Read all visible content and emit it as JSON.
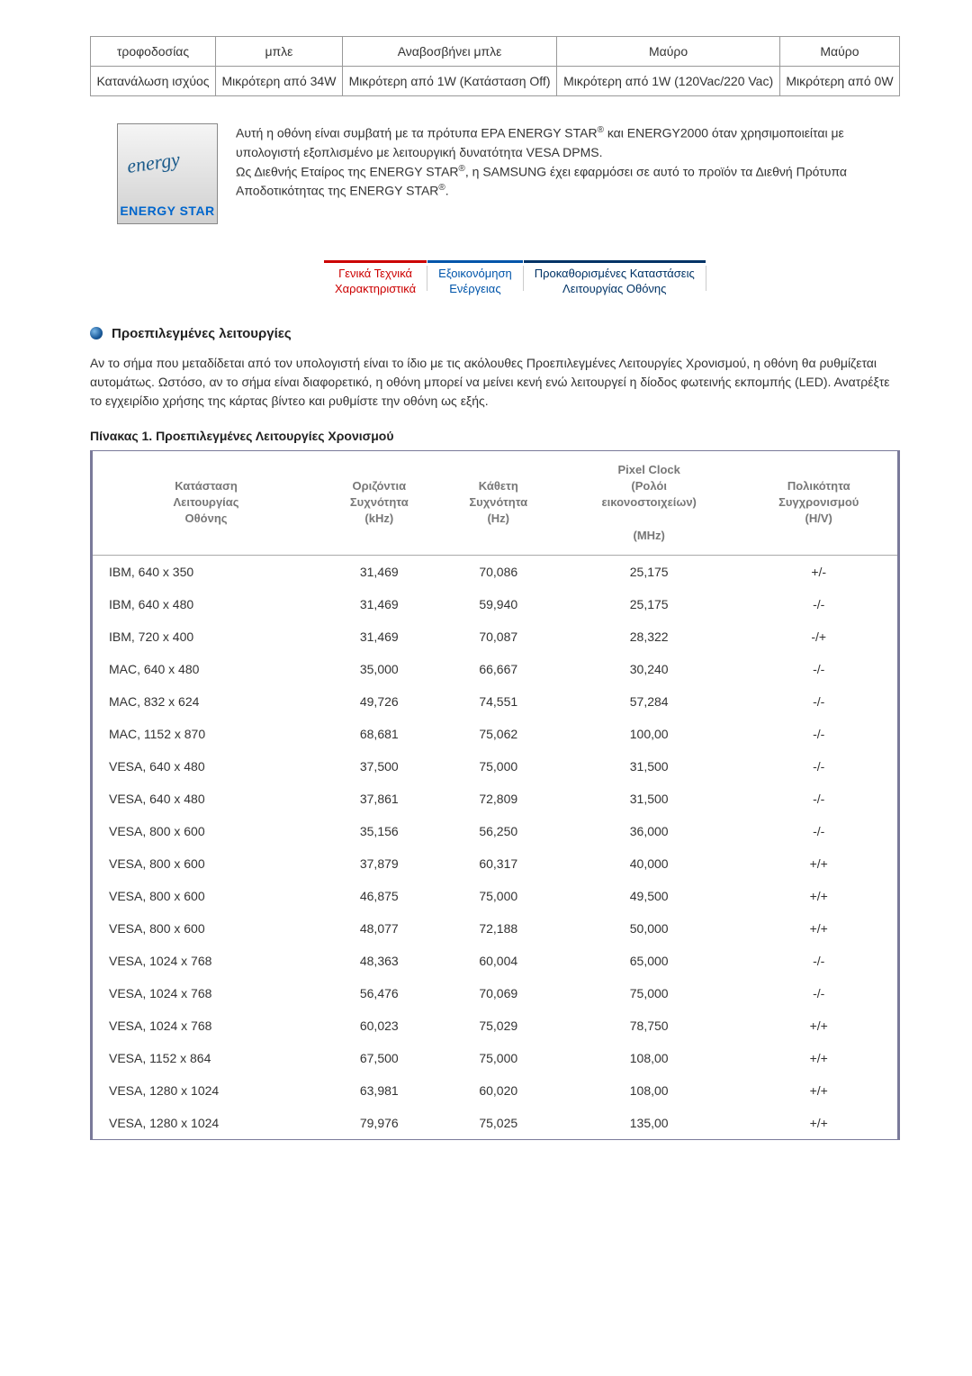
{
  "top_table": {
    "rows": [
      [
        "τροφοδοσίας",
        "μπλε",
        "Αναβοσβήνει μπλε",
        "Μαύρο",
        "Μαύρο"
      ],
      [
        "Κατανάλωση ισχύος",
        "Μικρότερη από 34W",
        "Μικρότερη από 1W (Κατάσταση Off)",
        "Μικρότερη από 1W (120Vac/220 Vac)",
        "Μικρότερη από 0W"
      ]
    ]
  },
  "energy_logo": {
    "script_text": "energy",
    "star_text": "ENERGY STAR"
  },
  "energy_text": {
    "line1_a": "Αυτή η οθόνη είναι συμβατή με τα πρότυπα EPA ENERGY STAR",
    "line1_b": " και ENERGY2000 όταν χρησιμοποιείται με υπολογιστή εξοπλισμένο με λειτουργική δυνατότητα VESA DPMS.",
    "line2_a": "Ως Διεθνής Εταίρος της ENERGY STAR",
    "line2_b": ", η SAMSUNG έχει εφαρμόσει σε αυτό το προϊόν τα Διεθνή Πρότυπα Αποδοτικότητας της ENERGY STAR",
    "line2_c": "."
  },
  "tabs": {
    "t1_line1": "Γενικά Τεχνικά",
    "t1_line2": "Χαρακτηριστικά",
    "t2_line1": "Εξοικονόμηση",
    "t2_line2": "Ενέργειας",
    "t3_line1": "Προκαθορισμένες Καταστάσεις",
    "t3_line2": "Λειτουργίας Οθόνης"
  },
  "section_title": "Προεπιλεγμένες λειτουργίες",
  "paragraph": "Αν το σήμα που μεταδίδεται από τον υπολογιστή είναι το ίδιο με τις ακόλουθες Προεπιλεγμένες Λειτουργίες Χρονισμού, η οθόνη θα ρυθμίζεται αυτομάτως. Ωστόσο, αν το σήμα είναι διαφορετικό, η οθόνη μπορεί να μείνει κενή ενώ λειτουργεί η δίοδος φωτεινής εκπομπής (LED). Ανατρέξτε το εγχειρίδιο χρήσης της κάρτας βίντεο και ρυθμίστε την οθόνη ως εξής.",
  "table_caption": "Πίνακας 1. Προεπιλεγμένες Λειτουργίες Χρονισμού",
  "timing_headers_html": {
    "c1": "Κατάσταση<br>Λειτουργίας<br>Οθόνης",
    "c2": "Οριζόντια<br>Συχνότητα<br>(kHz)",
    "c3": "Κάθετη<br>Συχνότητα<br>(Hz)",
    "c4": "Pixel Clock<br>(Ρολόι<br>εικονοστοιχείων)<br><br>(MHz)",
    "c5": "Πολικότητα<br>Συγχρονισμού<br>(H/V)"
  },
  "timing_rows": [
    [
      "IBM, 640 x 350",
      "31,469",
      "70,086",
      "25,175",
      "+/-"
    ],
    [
      "IBM, 640 x 480",
      "31,469",
      "59,940",
      "25,175",
      "-/-"
    ],
    [
      "IBM, 720 x 400",
      "31,469",
      "70,087",
      "28,322",
      "-/+"
    ],
    [
      "MAC, 640 x 480",
      "35,000",
      "66,667",
      "30,240",
      "-/-"
    ],
    [
      "MAC, 832 x 624",
      "49,726",
      "74,551",
      "57,284",
      "-/-"
    ],
    [
      "MAC, 1152 x 870",
      "68,681",
      "75,062",
      "100,00",
      "-/-"
    ],
    [
      "VESA, 640 x 480",
      "37,500",
      "75,000",
      "31,500",
      "-/-"
    ],
    [
      "VESA, 640 x 480",
      "37,861",
      "72,809",
      "31,500",
      "-/-"
    ],
    [
      "VESA, 800 x 600",
      "35,156",
      "56,250",
      "36,000",
      "-/-"
    ],
    [
      "VESA, 800 x 600",
      "37,879",
      "60,317",
      "40,000",
      "+/+"
    ],
    [
      "VESA, 800 x 600",
      "46,875",
      "75,000",
      "49,500",
      "+/+"
    ],
    [
      "VESA, 800 x 600",
      "48,077",
      "72,188",
      "50,000",
      "+/+"
    ],
    [
      "VESA, 1024 x 768",
      "48,363",
      "60,004",
      "65,000",
      "-/-"
    ],
    [
      "VESA, 1024 x 768",
      "56,476",
      "70,069",
      "75,000",
      "-/-"
    ],
    [
      "VESA, 1024 x 768",
      "60,023",
      "75,029",
      "78,750",
      "+/+"
    ],
    [
      "VESA, 1152 x 864",
      "67,500",
      "75,000",
      "108,00",
      "+/+"
    ],
    [
      "VESA, 1280 x 1024",
      "63,981",
      "60,020",
      "108,00",
      "+/+"
    ],
    [
      "VESA, 1280 x 1024",
      "79,976",
      "75,025",
      "135,00",
      "+/+"
    ]
  ]
}
